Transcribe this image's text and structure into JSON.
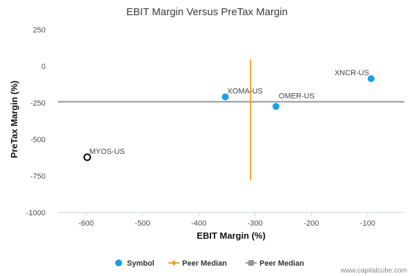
{
  "chart_data": {
    "type": "scatter",
    "title": "EBIT Margin Versus PreTax Margin",
    "xlabel": "EBIT Margin (%)",
    "ylabel": "PreTax Margin (%)",
    "xlim": [
      -650,
      -35
    ],
    "ylim": [
      -1000,
      250
    ],
    "xticks": [
      -600,
      -500,
      -400,
      -300,
      -200,
      -100
    ],
    "yticks": [
      250,
      0,
      -250,
      -500,
      -750,
      -1000
    ],
    "grid": false,
    "legend_position": "bottom",
    "points": [
      {
        "label": "XOMA-US",
        "x": -353,
        "y": -210,
        "style": "filled",
        "color": "#1a9fe8"
      },
      {
        "label": "OMER-US",
        "x": -263,
        "y": -275,
        "style": "filled",
        "color": "#1a9fe8"
      },
      {
        "label": "XNCR-US",
        "x": -94,
        "y": -85,
        "style": "filled",
        "color": "#1a9fe8"
      },
      {
        "label": "MYOS-US",
        "x": -598,
        "y": -622,
        "style": "hollow",
        "color": "#000000"
      }
    ],
    "peer_median_x": -308,
    "peer_median_y": -243,
    "legend": [
      {
        "label": "Symbol",
        "color": "#1a9fe8",
        "marker": "circle"
      },
      {
        "label": "Peer Median",
        "color": "#f5a21e",
        "marker": "diamond"
      },
      {
        "label": "Peer Median",
        "color": "#8e959c",
        "marker": "square"
      }
    ]
  },
  "watermark": "www.capitalcube.com"
}
